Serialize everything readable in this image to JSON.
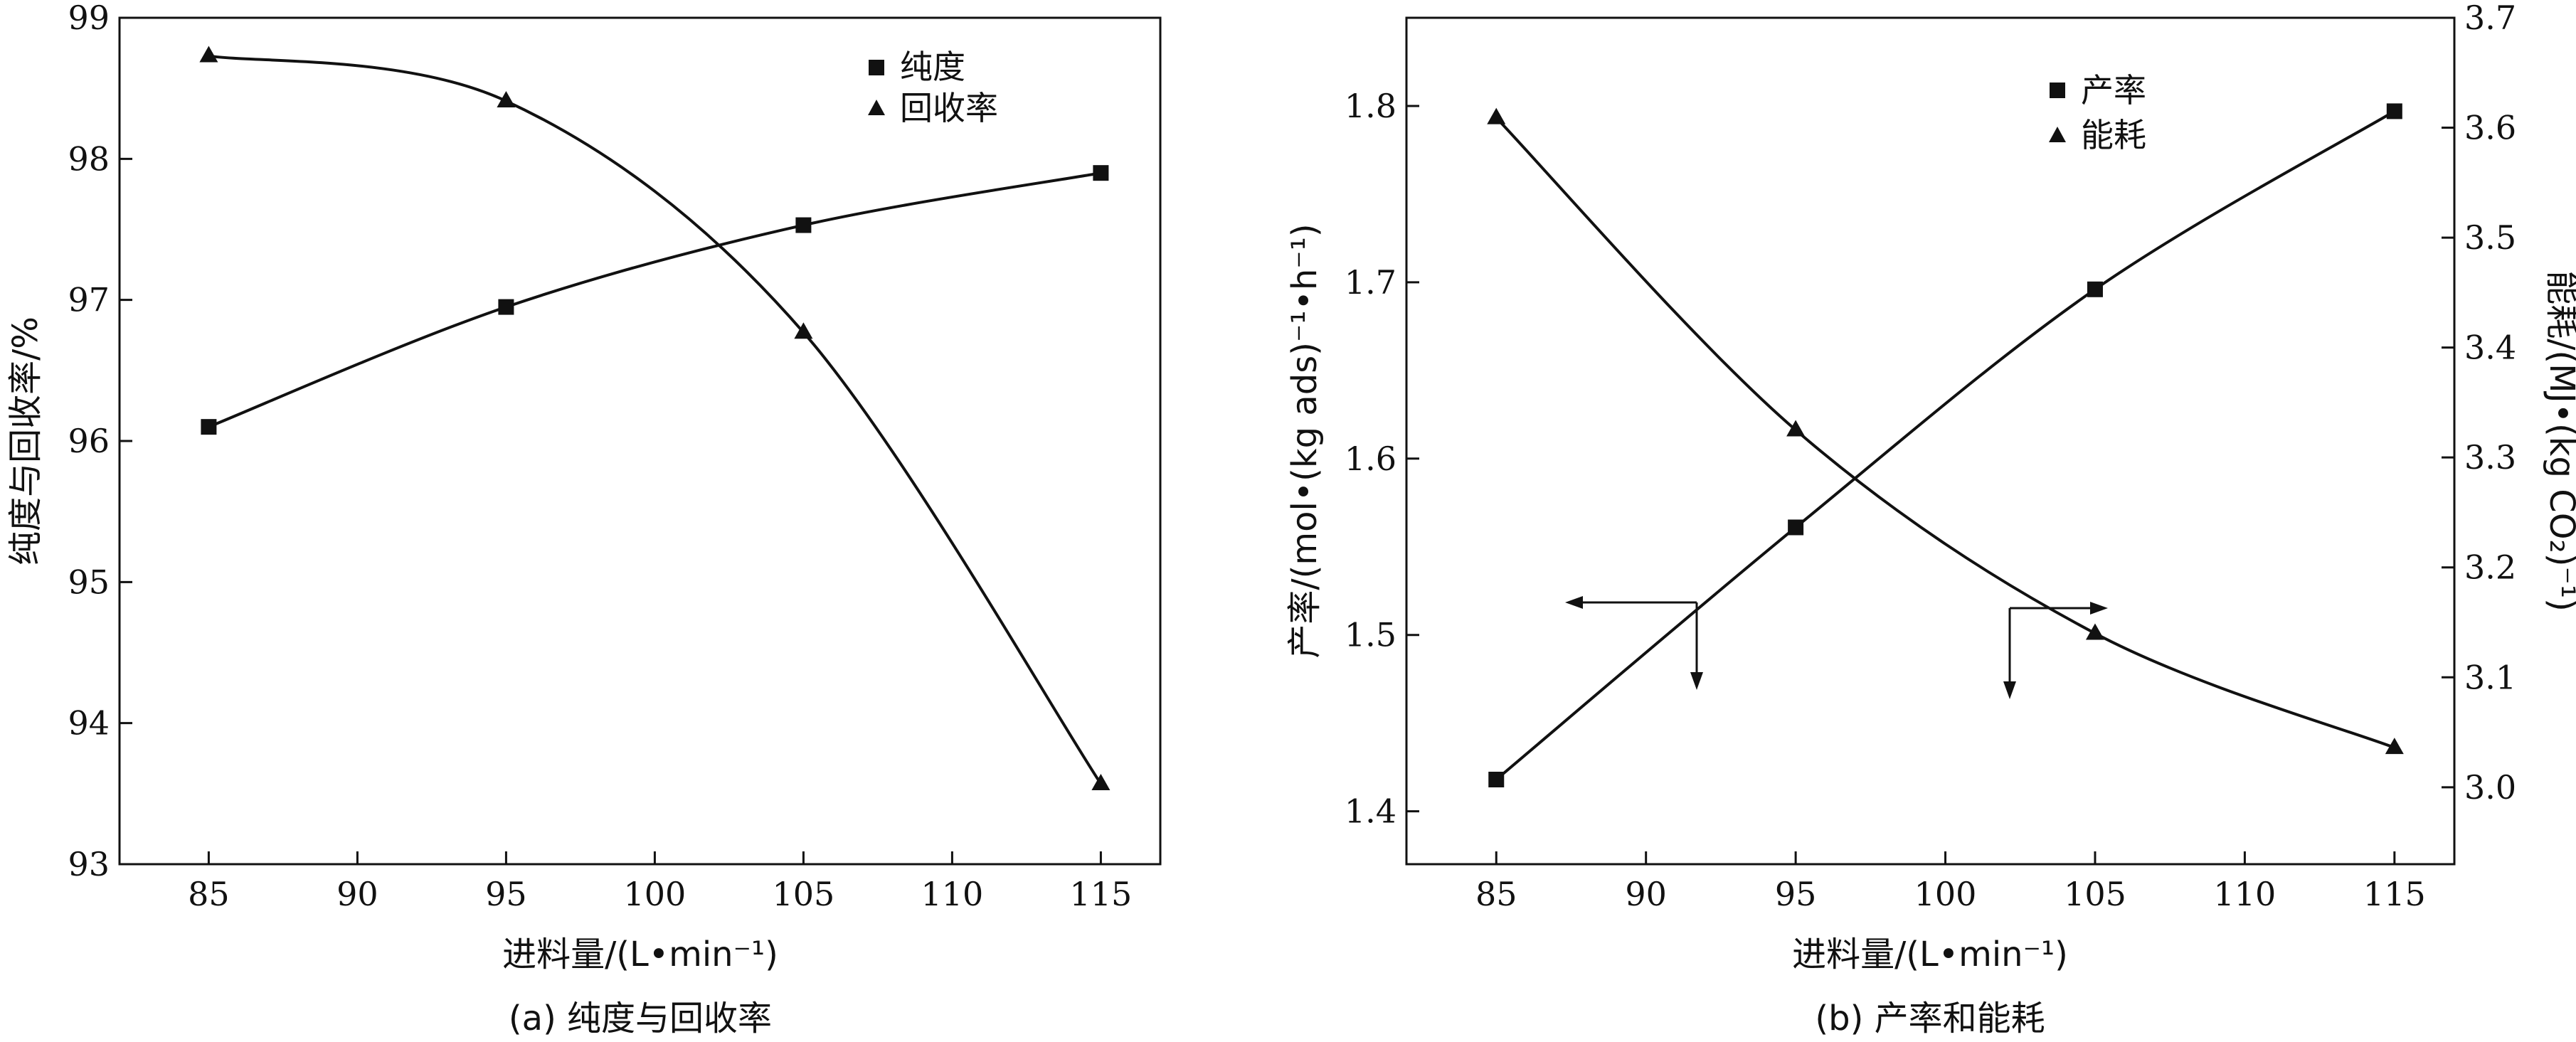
{
  "chart_data": [
    {
      "type": "line",
      "caption": "(a) 纯度与回收率",
      "xlabel": "进料量/(L•min⁻¹)",
      "ylabel": "纯度与回收率/%",
      "xlim": [
        82,
        117
      ],
      "ylim": [
        93,
        99
      ],
      "xticks": [
        "85",
        "90",
        "95",
        "100",
        "105",
        "110",
        "115"
      ],
      "yticks": [
        "93",
        "94",
        "95",
        "96",
        "97",
        "98",
        "99"
      ],
      "legend_position": "top-right",
      "series": [
        {
          "name": "纯度",
          "marker": "square",
          "x": [
            85,
            95,
            105,
            115
          ],
          "y": [
            96.1,
            96.95,
            97.53,
            97.9
          ]
        },
        {
          "name": "回收率",
          "marker": "triangle",
          "x": [
            85,
            95,
            105,
            115
          ],
          "y": [
            98.73,
            98.41,
            96.77,
            93.57
          ]
        }
      ]
    },
    {
      "type": "line",
      "caption": "(b) 产率和能耗",
      "xlabel": "进料量/(L•min⁻¹)",
      "ylabel": "产率/(mol•(kg ads)⁻¹•h⁻¹)",
      "y2label": "能耗/(MJ•(kg CO₂)⁻¹)",
      "xlim": [
        82,
        117
      ],
      "ylim": [
        1.37,
        1.85
      ],
      "y2lim": [
        2.93,
        3.7
      ],
      "xticks": [
        "85",
        "90",
        "95",
        "100",
        "105",
        "110",
        "115"
      ],
      "yticks": [
        "1.4",
        "1.5",
        "1.6",
        "1.7",
        "1.8"
      ],
      "y2ticks": [
        "3.0",
        "3.1",
        "3.2",
        "3.3",
        "3.4",
        "3.5",
        "3.6",
        "3.7"
      ],
      "legend_position": "top-right",
      "series": [
        {
          "name": "产率",
          "marker": "square",
          "axis": "left",
          "x": [
            85,
            95,
            105,
            115
          ],
          "y": [
            1.418,
            1.561,
            1.696,
            1.797
          ]
        },
        {
          "name": "能耗",
          "marker": "triangle",
          "axis": "right",
          "x": [
            85,
            95,
            105,
            115
          ],
          "y": [
            3.609,
            3.325,
            3.14,
            3.036
          ]
        }
      ]
    }
  ]
}
